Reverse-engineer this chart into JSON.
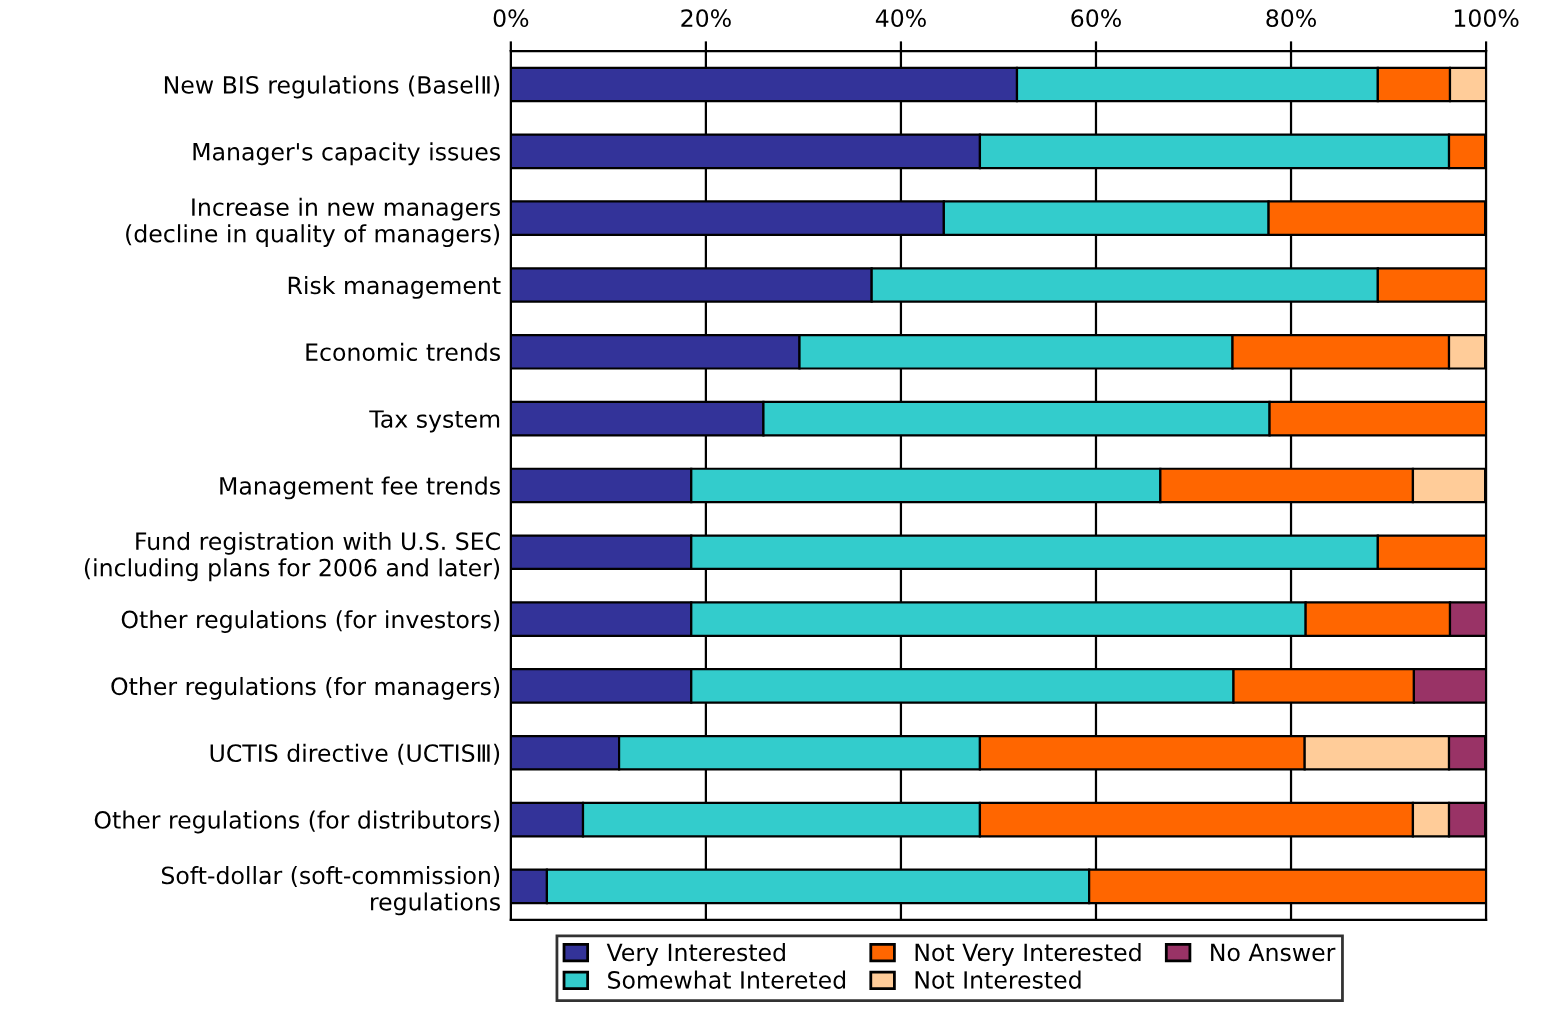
{
  "chart_data": {
    "type": "bar",
    "orientation": "horizontal",
    "stacked": true,
    "categories": [
      "New BIS regulations (BaselⅡ)",
      "Manager's capacity issues",
      "Increase in new managers\n(decline in quality of managers)",
      "Risk management",
      "Economic trends",
      "Tax system",
      "Management fee trends",
      "Fund registration with U.S. SEC\n(including plans for 2006 and later)",
      "Other regulations (for investors)",
      "Other regulations (for managers)",
      "UCTIS directive (UCTISⅢ)",
      "Other regulations (for distributors)",
      "Soft-dollar (soft-commission)\nregulations"
    ],
    "series": [
      {
        "name": "Very Interested",
        "color": "#333399",
        "values": [
          51.9,
          48.1,
          44.4,
          37.0,
          29.6,
          25.9,
          18.5,
          18.5,
          18.5,
          18.5,
          11.1,
          7.4,
          3.7
        ]
      },
      {
        "name": "Somewhat Intereted",
        "color": "#33cccc",
        "values": [
          37.0,
          48.1,
          33.3,
          51.9,
          44.4,
          51.9,
          48.1,
          70.4,
          63.0,
          55.6,
          37.0,
          40.7,
          55.6
        ]
      },
      {
        "name": "Not Very Interested",
        "color": "#ff6600",
        "values": [
          7.4,
          3.7,
          22.2,
          11.1,
          22.2,
          22.2,
          25.9,
          11.1,
          14.8,
          18.5,
          33.3,
          44.4,
          40.7
        ]
      },
      {
        "name": "Not Interested",
        "color": "#ffcc99",
        "values": [
          3.7,
          null,
          null,
          null,
          3.7,
          null,
          7.4,
          null,
          null,
          null,
          14.8,
          3.7,
          null
        ]
      },
      {
        "name": "No Answer",
        "color": "#993366",
        "values": [
          null,
          null,
          null,
          null,
          null,
          null,
          null,
          null,
          3.7,
          7.4,
          3.7,
          3.7,
          null
        ]
      }
    ],
    "xlim": [
      0,
      100
    ],
    "xticks": [
      {
        "value": 0,
        "label": "0%"
      },
      {
        "value": 20,
        "label": "20%"
      },
      {
        "value": 40,
        "label": "40%"
      },
      {
        "value": 60,
        "label": "60%"
      },
      {
        "value": 80,
        "label": "80%"
      },
      {
        "value": 100,
        "label": "100%"
      }
    ],
    "grid": "x",
    "legend": "bottom"
  }
}
